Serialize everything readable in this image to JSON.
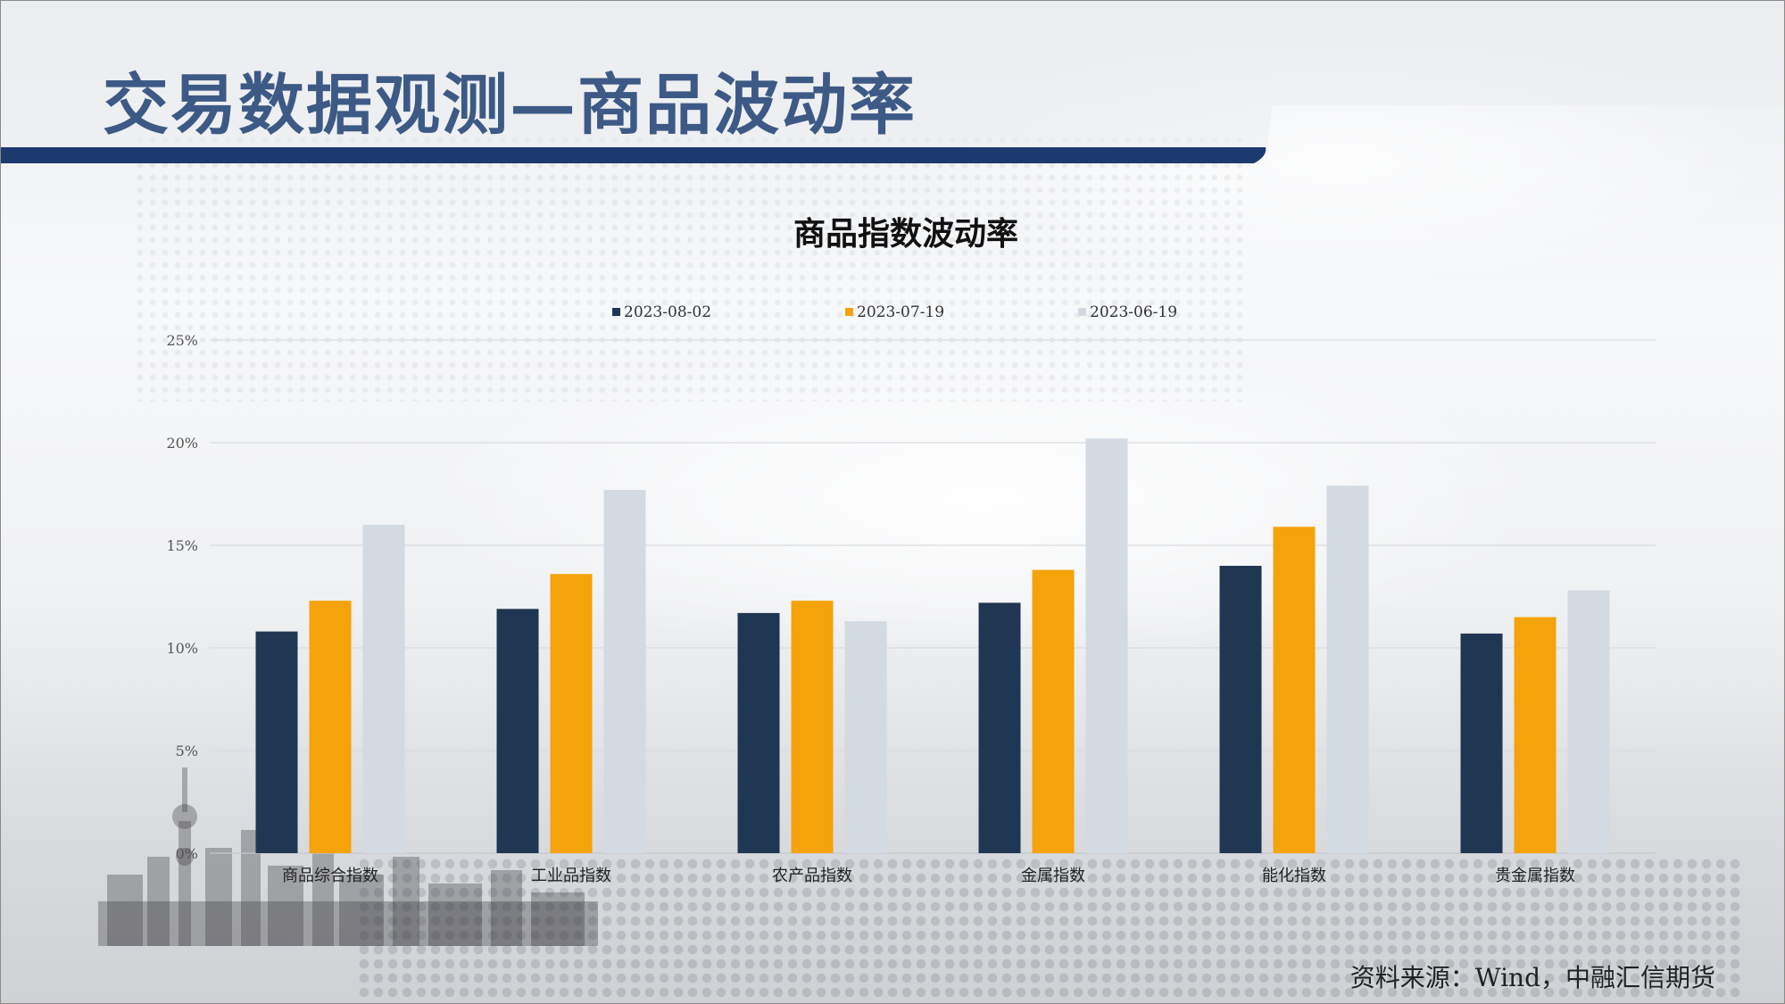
{
  "page": {
    "title": "交易数据观测—商品波动率",
    "source": "资料来源：Wind，中融汇信期货"
  },
  "colors": {
    "header_bar": "#1c3a6e",
    "title_text": "#3d5a86"
  },
  "chart_data": {
    "type": "bar",
    "title": "商品指数波动率",
    "xlabel": "",
    "ylabel": "",
    "categories": [
      "商品综合指数",
      "工业品指数",
      "农产品指数",
      "金属指数",
      "能化指数",
      "贵金属指数"
    ],
    "series": [
      {
        "name": "2023-08-02",
        "color": "#1f3752",
        "values": [
          10.8,
          11.9,
          11.7,
          12.2,
          14.0,
          10.7
        ]
      },
      {
        "name": "2023-07-19",
        "color": "#f5a30a",
        "values": [
          12.3,
          13.6,
          12.3,
          13.8,
          15.9,
          11.5
        ]
      },
      {
        "name": "2023-06-19",
        "color": "#d3dae2",
        "values": [
          16.0,
          17.7,
          11.3,
          20.2,
          17.9,
          12.8
        ]
      }
    ],
    "ylim": [
      0,
      25
    ],
    "yticks": [
      "0%",
      "5%",
      "10%",
      "15%",
      "20%",
      "25%"
    ],
    "grid": true,
    "legend": "top-center"
  }
}
